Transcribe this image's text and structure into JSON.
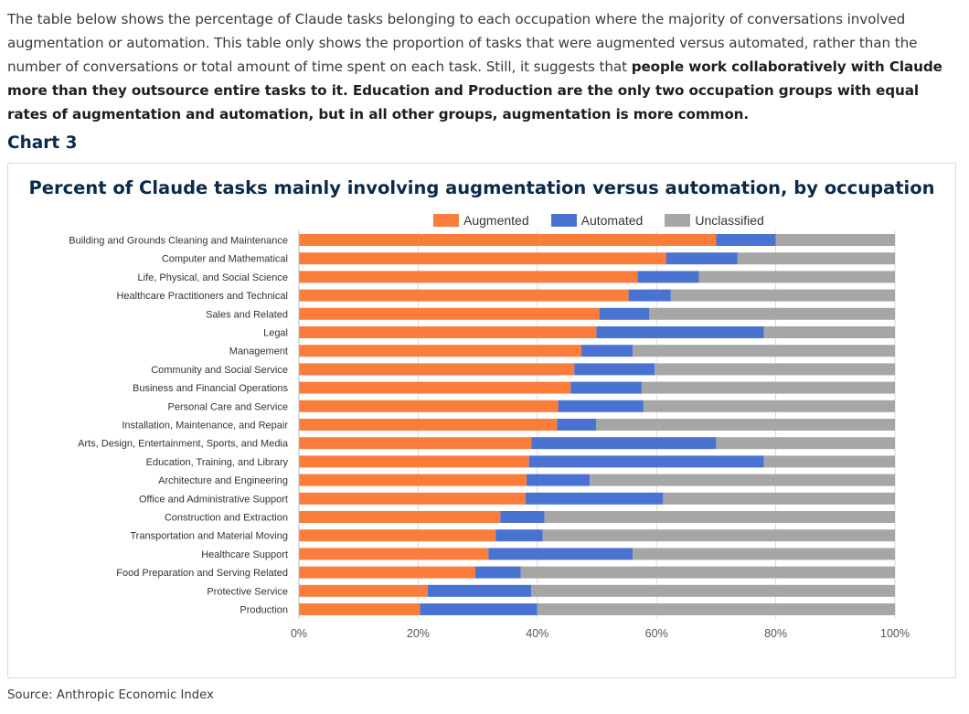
{
  "intro": {
    "text_before": "The table below shows the percentage of Claude tasks belonging to each occupation where the majority of conversations involved augmentation or automation. This table only shows the proportion of tasks that were augmented versus automated, rather than the number of conversations or total amount of time spent on each task. Still, it suggests that ",
    "bold_text": "people work collaboratively with Claude more than they outsource entire tasks to it.  Education and Production are the only two occupation groups with equal rates of augmentation and automation, but in all other groups, augmentation is more common."
  },
  "chart_heading": "Chart 3",
  "source": "Source: Anthropic Economic Index",
  "chart_data": {
    "type": "bar",
    "orientation": "horizontal",
    "stacked": true,
    "title": "Percent of Claude tasks mainly involving augmentation versus automation, by occupation",
    "xlabel": "",
    "ylabel": "",
    "xlim": [
      0,
      100
    ],
    "x_ticks": [
      "0%",
      "20%",
      "40%",
      "60%",
      "80%",
      "100%"
    ],
    "grid": "vertical",
    "legend_position": "top",
    "categories": [
      "Building and Grounds Cleaning and Maintenance",
      "Computer and Mathematical",
      "Life, Physical, and Social Science",
      "Healthcare Practitioners and Technical",
      "Sales and Related",
      "Legal",
      "Management",
      "Community and Social Service",
      "Business and Financial Operations",
      "Personal Care and Service",
      "Installation, Maintenance, and Repair",
      "Arts, Design, Entertainment, Sports, and Media",
      "Education, Training, and Library",
      "Architecture and Engineering",
      "Office and Administrative Support",
      "Construction and Extraction",
      "Transportation and Material Moving",
      "Healthcare Support",
      "Food Preparation and Serving Related",
      "Protective Service",
      "Production"
    ],
    "series": [
      {
        "name": "Augmented",
        "color": "#fb7d3b",
        "values": [
          70.0,
          61.6,
          56.8,
          55.3,
          50.4,
          49.9,
          47.4,
          46.2,
          45.6,
          43.5,
          43.3,
          39.0,
          38.6,
          38.2,
          38.0,
          33.8,
          33.0,
          31.8,
          29.6,
          21.6,
          20.3
        ]
      },
      {
        "name": "Automated",
        "color": "#4a73d1",
        "values": [
          10.0,
          12.0,
          10.3,
          7.1,
          8.4,
          28.1,
          8.6,
          13.5,
          11.9,
          14.3,
          6.6,
          31.0,
          39.4,
          10.6,
          23.1,
          7.4,
          7.9,
          24.2,
          7.6,
          17.4,
          19.7
        ]
      },
      {
        "name": "Unclassified",
        "color": "#a6a6a6",
        "values": [
          20.0,
          26.4,
          32.9,
          37.6,
          41.2,
          22.0,
          44.0,
          40.3,
          42.5,
          42.2,
          50.1,
          30.0,
          22.0,
          51.2,
          38.9,
          58.8,
          59.1,
          44.0,
          62.8,
          61.0,
          60.0
        ]
      }
    ]
  }
}
